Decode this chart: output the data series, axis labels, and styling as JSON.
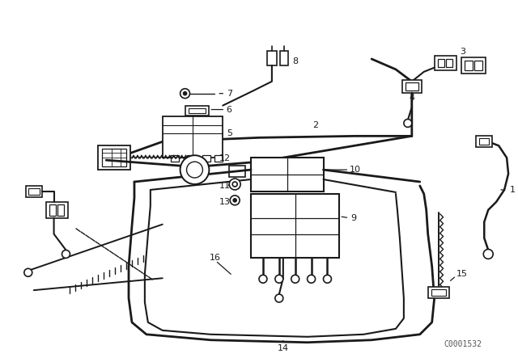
{
  "bg_color": "#ffffff",
  "line_color": "#1a1a1a",
  "fig_width": 6.4,
  "fig_height": 4.48,
  "dpi": 100,
  "watermark": "C0001532"
}
